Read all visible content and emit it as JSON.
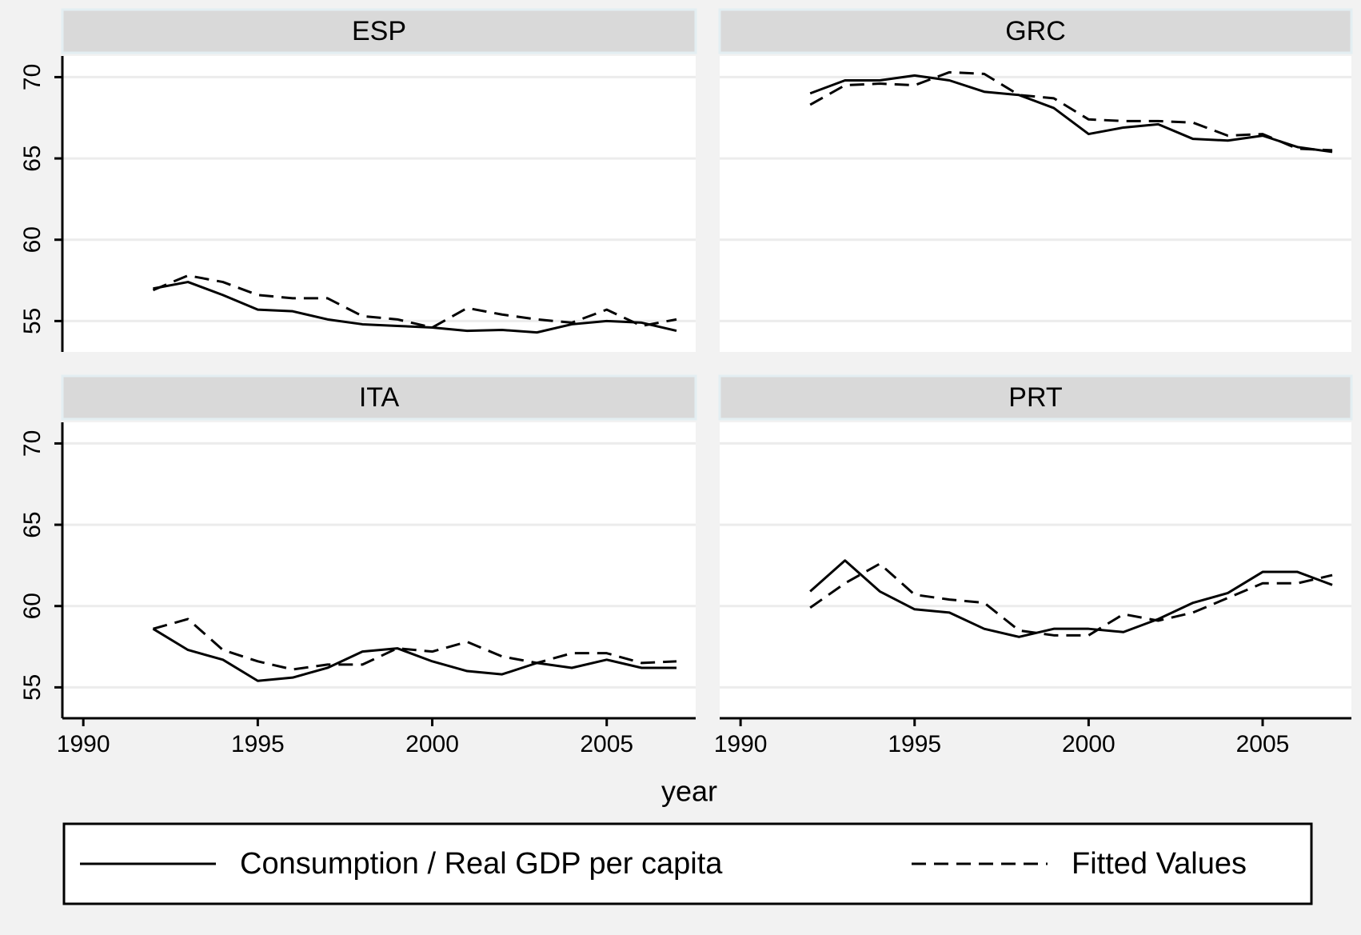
{
  "chart_data": {
    "type": "line",
    "xlabel": "year",
    "x": [
      1992,
      1993,
      1994,
      1995,
      1996,
      1997,
      1998,
      1999,
      2000,
      2001,
      2002,
      2003,
      2004,
      2005,
      2006,
      2007
    ],
    "xlim": [
      1989.4,
      2007.55
    ],
    "xticks": [
      1990,
      1995,
      2000,
      2005
    ],
    "ylim": [
      53.1,
      71.3
    ],
    "yticks": [
      55,
      60,
      65,
      70
    ],
    "grid": true,
    "legend": [
      {
        "name": "Consumption / Real GDP per capita",
        "color": "#000000",
        "dash": "solid"
      },
      {
        "name": "Fitted Values",
        "color": "#000000",
        "dash": "dashed"
      }
    ],
    "panels": [
      {
        "title": "ESP",
        "series": [
          {
            "values": [
              57.0,
              57.4,
              56.6,
              55.7,
              55.6,
              55.1,
              54.8,
              54.7,
              54.6,
              54.4,
              54.45,
              54.3,
              54.8,
              55.0,
              54.9,
              54.4
            ]
          },
          {
            "values": [
              56.9,
              57.8,
              57.4,
              56.6,
              56.4,
              56.4,
              55.3,
              55.1,
              54.6,
              55.8,
              55.4,
              55.1,
              54.9,
              55.7,
              54.7,
              55.1
            ]
          }
        ]
      },
      {
        "title": "GRC",
        "series": [
          {
            "values": [
              69.0,
              69.8,
              69.8,
              70.1,
              69.8,
              69.1,
              68.9,
              68.1,
              66.5,
              66.9,
              67.1,
              66.2,
              66.1,
              66.4,
              65.7,
              65.4
            ]
          },
          {
            "values": [
              68.3,
              69.5,
              69.6,
              69.5,
              70.3,
              70.2,
              68.9,
              68.7,
              67.4,
              67.3,
              67.3,
              67.2,
              66.4,
              66.5,
              65.6,
              65.5
            ]
          }
        ]
      },
      {
        "title": "ITA",
        "series": [
          {
            "values": [
              58.6,
              57.3,
              56.7,
              55.4,
              55.6,
              56.2,
              57.2,
              57.4,
              56.6,
              56.0,
              55.8,
              56.5,
              56.2,
              56.7,
              56.2,
              56.2
            ]
          },
          {
            "values": [
              58.6,
              59.2,
              57.3,
              56.6,
              56.1,
              56.4,
              56.4,
              57.4,
              57.2,
              57.8,
              56.9,
              56.5,
              57.1,
              57.1,
              56.5,
              56.6
            ]
          }
        ]
      },
      {
        "title": "PRT",
        "series": [
          {
            "values": [
              60.9,
              62.8,
              60.9,
              59.8,
              59.6,
              58.6,
              58.1,
              58.6,
              58.6,
              58.4,
              59.2,
              60.2,
              60.8,
              62.1,
              62.1,
              61.3
            ]
          },
          {
            "values": [
              59.9,
              61.4,
              62.6,
              60.7,
              60.4,
              60.2,
              58.5,
              58.2,
              58.2,
              59.5,
              59.1,
              59.6,
              60.5,
              61.4,
              61.4,
              61.9
            ]
          }
        ]
      }
    ]
  }
}
